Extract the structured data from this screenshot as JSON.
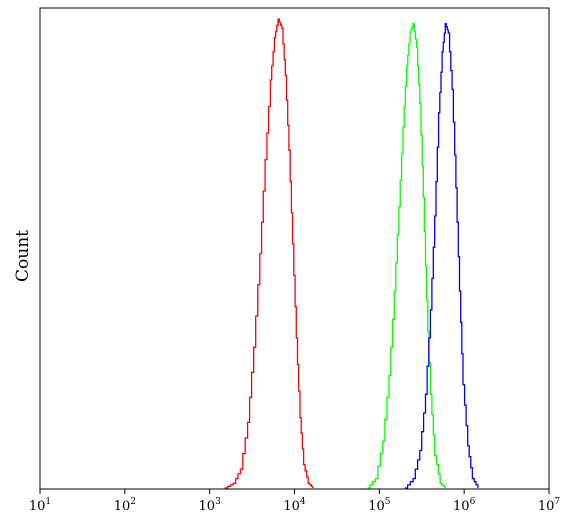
{
  "chart_data": {
    "type": "line",
    "subtype": "flow-cytometry-histogram",
    "title": "",
    "xlabel": "",
    "ylabel": "Count",
    "x_scale": "log",
    "xlim": [
      10,
      10000000
    ],
    "ylim": [
      0,
      1.0
    ],
    "grid": false,
    "legend": "none",
    "x_ticks": [
      {
        "base": "10",
        "exp": "1",
        "value": 10
      },
      {
        "base": "10",
        "exp": "2",
        "value": 100
      },
      {
        "base": "10",
        "exp": "3",
        "value": 1000
      },
      {
        "base": "10",
        "exp": "4",
        "value": 10000
      },
      {
        "base": "10",
        "exp": "5",
        "value": 100000
      },
      {
        "base": "10",
        "exp": "6",
        "value": 1000000
      },
      {
        "base": "10",
        "exp": "7",
        "value": 10000000
      }
    ],
    "series": [
      {
        "color": "#ff0000",
        "points": [
          [
            1500,
            0.0
          ],
          [
            1900,
            0.01
          ],
          [
            2300,
            0.04
          ],
          [
            2800,
            0.14
          ],
          [
            3300,
            0.3
          ],
          [
            3900,
            0.5
          ],
          [
            4500,
            0.7
          ],
          [
            5200,
            0.87
          ],
          [
            5800,
            0.96
          ],
          [
            6400,
            1.0
          ],
          [
            7100,
            0.98
          ],
          [
            7800,
            0.88
          ],
          [
            8600,
            0.72
          ],
          [
            9500,
            0.52
          ],
          [
            10500,
            0.32
          ],
          [
            11600,
            0.15
          ],
          [
            12800,
            0.05
          ],
          [
            14500,
            0.01
          ],
          [
            16500,
            0.0
          ]
        ]
      },
      {
        "color": "#00ff00",
        "points": [
          [
            72000,
            0.0
          ],
          [
            90000,
            0.02
          ],
          [
            110000,
            0.1
          ],
          [
            130000,
            0.24
          ],
          [
            150000,
            0.42
          ],
          [
            170000,
            0.6
          ],
          [
            190000,
            0.77
          ],
          [
            210000,
            0.9
          ],
          [
            230000,
            0.97
          ],
          [
            250000,
            0.99
          ],
          [
            275000,
            0.94
          ],
          [
            300000,
            0.82
          ],
          [
            330000,
            0.62
          ],
          [
            360000,
            0.4
          ],
          [
            400000,
            0.2
          ],
          [
            450000,
            0.07
          ],
          [
            520000,
            0.01
          ],
          [
            600000,
            0.0
          ]
        ]
      },
      {
        "color": "#0000ff",
        "points": [
          [
            200000,
            0.0
          ],
          [
            250000,
            0.02
          ],
          [
            300000,
            0.08
          ],
          [
            350000,
            0.2
          ],
          [
            400000,
            0.38
          ],
          [
            450000,
            0.58
          ],
          [
            500000,
            0.8
          ],
          [
            550000,
            0.93
          ],
          [
            600000,
            0.99
          ],
          [
            650000,
            0.97
          ],
          [
            720000,
            0.85
          ],
          [
            800000,
            0.64
          ],
          [
            880000,
            0.42
          ],
          [
            970000,
            0.22
          ],
          [
            1100000,
            0.09
          ],
          [
            1250000,
            0.02
          ],
          [
            1450000,
            0.0
          ]
        ]
      }
    ]
  }
}
